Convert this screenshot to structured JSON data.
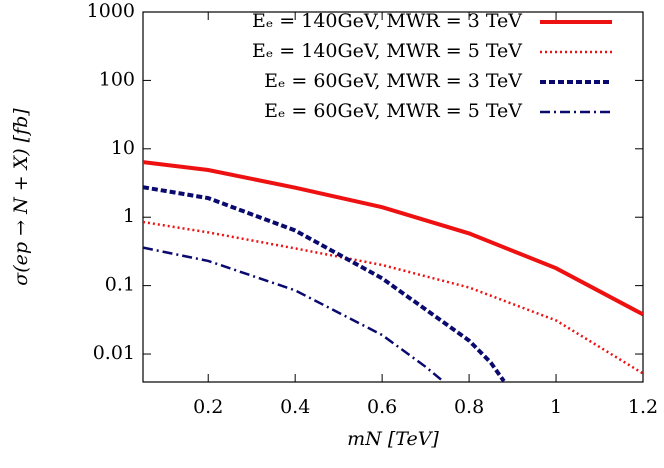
{
  "chart_data": {
    "type": "line",
    "xlabel": "mN [TeV]",
    "ylabel": "σ(ep → N + X) [fb]",
    "xlim": [
      0.05,
      1.2
    ],
    "ylim": [
      0.0039,
      1000
    ],
    "ylog": true,
    "xticks": [
      0.2,
      0.4,
      0.6,
      0.8,
      1,
      1.2
    ],
    "yticks": [
      0.01,
      0.1,
      1,
      10,
      100,
      1000
    ],
    "legend": "upper right",
    "series": [
      {
        "name": "Eₑ = 140GeV, MWR = 3 TeV",
        "color": "#ee1111",
        "style": "solid",
        "width": 4,
        "x": [
          0.05,
          0.2,
          0.4,
          0.6,
          0.8,
          1.0,
          1.2
        ],
        "values": [
          6.4,
          4.9,
          2.7,
          1.4,
          0.58,
          0.18,
          0.038
        ]
      },
      {
        "name": "Eₑ = 140GeV, MWR = 5 TeV",
        "color": "#ee1111",
        "style": "dotted",
        "width": 2.5,
        "x": [
          0.05,
          0.2,
          0.4,
          0.6,
          0.8,
          1.0,
          1.2
        ],
        "values": [
          0.85,
          0.6,
          0.35,
          0.2,
          0.094,
          0.031,
          0.0052
        ]
      },
      {
        "name": "Eₑ = 60GeV, MWR = 3 TeV",
        "color": "#0a0a6e",
        "style": "dashed",
        "width": 4,
        "x": [
          0.05,
          0.2,
          0.4,
          0.6,
          0.8,
          0.85,
          0.88
        ],
        "values": [
          2.75,
          1.9,
          0.64,
          0.128,
          0.0157,
          0.0075,
          0.004
        ]
      },
      {
        "name": "Eₑ = 60GeV, MWR = 5 TeV",
        "color": "#0a0a6e",
        "style": "dashdot",
        "width": 2.5,
        "x": [
          0.05,
          0.2,
          0.4,
          0.6,
          0.7,
          0.74
        ],
        "values": [
          0.36,
          0.23,
          0.085,
          0.019,
          0.0065,
          0.004
        ]
      }
    ]
  }
}
